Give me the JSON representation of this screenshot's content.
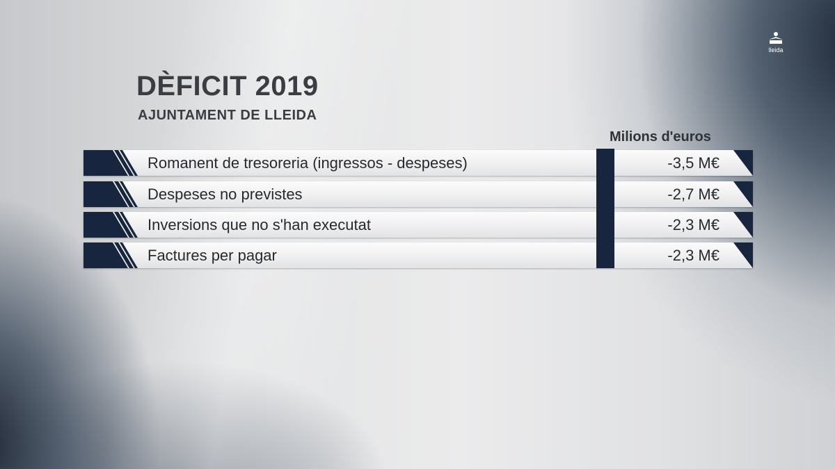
{
  "broadcaster": {
    "logo_text": "lleida",
    "logo_icon": "broadcaster-logo-icon"
  },
  "graphic": {
    "title": "DÈFICIT 2019",
    "subtitle": "AJUNTAMENT DE LLEIDA",
    "unit_header": "Milions d'euros",
    "rows": [
      {
        "label": "Romanent de tresoreria (ingressos - despeses)",
        "value": "-3,5 M€"
      },
      {
        "label": "Despeses no previstes",
        "value": "-2,7 M€"
      },
      {
        "label": "Inversions que no s'han executat",
        "value": "-2,3 M€"
      },
      {
        "label": "Factures per pagar",
        "value": "-2,3 M€"
      }
    ]
  },
  "colors": {
    "accent_navy": "#17253e",
    "text_dark": "#26292e",
    "row_background": "#f1f1f2"
  }
}
